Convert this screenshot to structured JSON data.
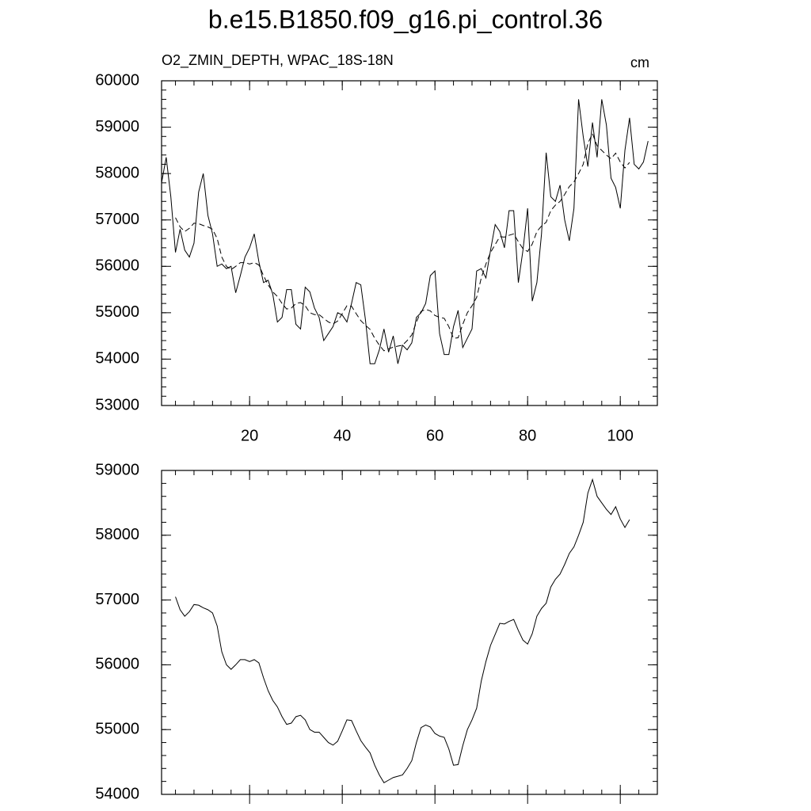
{
  "chart_data": [
    {
      "type": "line",
      "title": "b.e15.B1850.f09_g16.pi_control.36",
      "subtitle": "O2_ZMIN_DEPTH, WPAC_18S-18N",
      "units": "cm",
      "xlim": [
        1,
        108
      ],
      "xticks": [
        20,
        40,
        60,
        80,
        100
      ],
      "ylim": [
        53000,
        60000
      ],
      "yticks": [
        53000,
        54000,
        55000,
        56000,
        57000,
        58000,
        59000,
        60000
      ],
      "series": [
        {
          "color": "#000000",
          "dashed": false,
          "x": [
            1,
            2,
            3,
            4,
            5,
            6,
            7,
            8,
            9,
            10,
            11,
            12,
            13,
            14,
            15,
            16,
            17,
            18,
            19,
            20,
            21,
            22,
            23,
            24,
            25,
            26,
            27,
            28,
            29,
            30,
            31,
            32,
            33,
            34,
            35,
            36,
            37,
            38,
            39,
            40,
            41,
            42,
            43,
            44,
            45,
            46,
            47,
            48,
            49,
            50,
            51,
            52,
            53,
            54,
            55,
            56,
            57,
            58,
            59,
            60,
            61,
            62,
            63,
            64,
            65,
            66,
            67,
            68,
            69,
            70,
            71,
            72,
            73,
            74,
            75,
            76,
            77,
            78,
            79,
            80,
            81,
            82,
            83,
            84,
            85,
            86,
            87,
            88,
            89,
            90,
            91,
            92,
            93,
            94,
            95,
            96,
            97,
            98,
            99,
            100,
            101,
            102,
            103,
            104,
            105,
            106
          ],
          "values": [
            57800,
            58350,
            57500,
            56300,
            56800,
            56350,
            56200,
            56500,
            57600,
            58000,
            57100,
            56700,
            56000,
            56050,
            55950,
            56000,
            55430,
            55800,
            56200,
            56400,
            56700,
            56100,
            55650,
            55700,
            55400,
            54800,
            54900,
            55500,
            55500,
            54750,
            54650,
            55550,
            55450,
            55100,
            54900,
            54400,
            54550,
            54700,
            55000,
            54950,
            54800,
            55200,
            55650,
            55600,
            54850,
            53900,
            53900,
            54200,
            54650,
            54150,
            54500,
            53900,
            54300,
            54200,
            54350,
            54900,
            55000,
            55200,
            55800,
            55900,
            54550,
            54100,
            54100,
            54700,
            55050,
            54250,
            54450,
            54650,
            55900,
            55950,
            55750,
            56350,
            56900,
            56750,
            56400,
            57200,
            57200,
            55650,
            56350,
            57250,
            55250,
            55650,
            56700,
            58450,
            57500,
            57400,
            57750,
            57000,
            56550,
            57250,
            59600,
            58800,
            58150,
            59100,
            58350,
            59600,
            59050,
            57900,
            57700,
            57250,
            58500,
            59200,
            58200,
            58100,
            58250,
            58700
          ]
        },
        {
          "color": "#000000",
          "dashed": true,
          "x": [
            4,
            5,
            6,
            7,
            8,
            9,
            10,
            11,
            12,
            13,
            14,
            15,
            16,
            17,
            18,
            19,
            20,
            21,
            22,
            23,
            24,
            25,
            26,
            27,
            28,
            29,
            30,
            31,
            32,
            33,
            34,
            35,
            36,
            37,
            38,
            39,
            40,
            41,
            42,
            43,
            44,
            45,
            46,
            47,
            48,
            49,
            50,
            51,
            52,
            53,
            54,
            55,
            56,
            57,
            58,
            59,
            60,
            61,
            62,
            63,
            64,
            65,
            66,
            67,
            68,
            69,
            70,
            71,
            72,
            73,
            74,
            75,
            76,
            77,
            78,
            79,
            80,
            81,
            82,
            83,
            84,
            85,
            86,
            87,
            88,
            89,
            90,
            91,
            92,
            93,
            94,
            95,
            96,
            97,
            98,
            99,
            100,
            101,
            102
          ],
          "values": [
            57050,
            56850,
            56750,
            56820,
            56930,
            56920,
            56880,
            56850,
            56800,
            56600,
            56200,
            56000,
            55930,
            56000,
            56080,
            56080,
            56050,
            56080,
            56030,
            55800,
            55600,
            55450,
            55350,
            55200,
            55080,
            55100,
            55200,
            55220,
            55150,
            55000,
            54960,
            54960,
            54880,
            54800,
            54760,
            54820,
            54980,
            55150,
            55140,
            54980,
            54830,
            54730,
            54640,
            54450,
            54300,
            54180,
            54220,
            54260,
            54280,
            54300,
            54400,
            54520,
            54800,
            55030,
            55070,
            55040,
            54940,
            54900,
            54880,
            54700,
            54450,
            54460,
            54750,
            55000,
            55150,
            55330,
            55750,
            56050,
            56300,
            56470,
            56640,
            56630,
            56670,
            56700,
            56530,
            56380,
            56320,
            56480,
            56750,
            56870,
            56950,
            57200,
            57320,
            57400,
            57550,
            57720,
            57820,
            58000,
            58200,
            58650,
            58860,
            58600,
            58500,
            58400,
            58320,
            58440,
            58250,
            58120,
            58240
          ]
        }
      ]
    },
    {
      "type": "line",
      "xlim": [
        1,
        108
      ],
      "xticks": [
        20,
        40,
        60,
        80,
        100
      ],
      "ylim": [
        54000,
        59000
      ],
      "yticks": [
        54000,
        55000,
        56000,
        57000,
        58000,
        59000
      ],
      "series": [
        {
          "color": "#000000",
          "dashed": false,
          "x": [
            4,
            5,
            6,
            7,
            8,
            9,
            10,
            11,
            12,
            13,
            14,
            15,
            16,
            17,
            18,
            19,
            20,
            21,
            22,
            23,
            24,
            25,
            26,
            27,
            28,
            29,
            30,
            31,
            32,
            33,
            34,
            35,
            36,
            37,
            38,
            39,
            40,
            41,
            42,
            43,
            44,
            45,
            46,
            47,
            48,
            49,
            50,
            51,
            52,
            53,
            54,
            55,
            56,
            57,
            58,
            59,
            60,
            61,
            62,
            63,
            64,
            65,
            66,
            67,
            68,
            69,
            70,
            71,
            72,
            73,
            74,
            75,
            76,
            77,
            78,
            79,
            80,
            81,
            82,
            83,
            84,
            85,
            86,
            87,
            88,
            89,
            90,
            91,
            92,
            93,
            94,
            95,
            96,
            97,
            98,
            99,
            100,
            101,
            102
          ],
          "values": [
            57050,
            56850,
            56750,
            56820,
            56930,
            56920,
            56880,
            56850,
            56800,
            56600,
            56200,
            56000,
            55930,
            56000,
            56080,
            56080,
            56050,
            56080,
            56030,
            55800,
            55600,
            55450,
            55350,
            55200,
            55080,
            55100,
            55200,
            55220,
            55150,
            55000,
            54960,
            54960,
            54880,
            54800,
            54760,
            54820,
            54980,
            55150,
            55140,
            54980,
            54830,
            54730,
            54640,
            54450,
            54300,
            54180,
            54220,
            54260,
            54280,
            54300,
            54400,
            54520,
            54800,
            55030,
            55070,
            55040,
            54940,
            54900,
            54880,
            54700,
            54450,
            54460,
            54750,
            55000,
            55150,
            55330,
            55750,
            56050,
            56300,
            56470,
            56640,
            56630,
            56670,
            56700,
            56530,
            56380,
            56320,
            56480,
            56750,
            56870,
            56950,
            57200,
            57320,
            57400,
            57550,
            57720,
            57820,
            58000,
            58200,
            58650,
            58860,
            58600,
            58500,
            58400,
            58320,
            58440,
            58250,
            58120,
            58240
          ]
        }
      ]
    }
  ]
}
